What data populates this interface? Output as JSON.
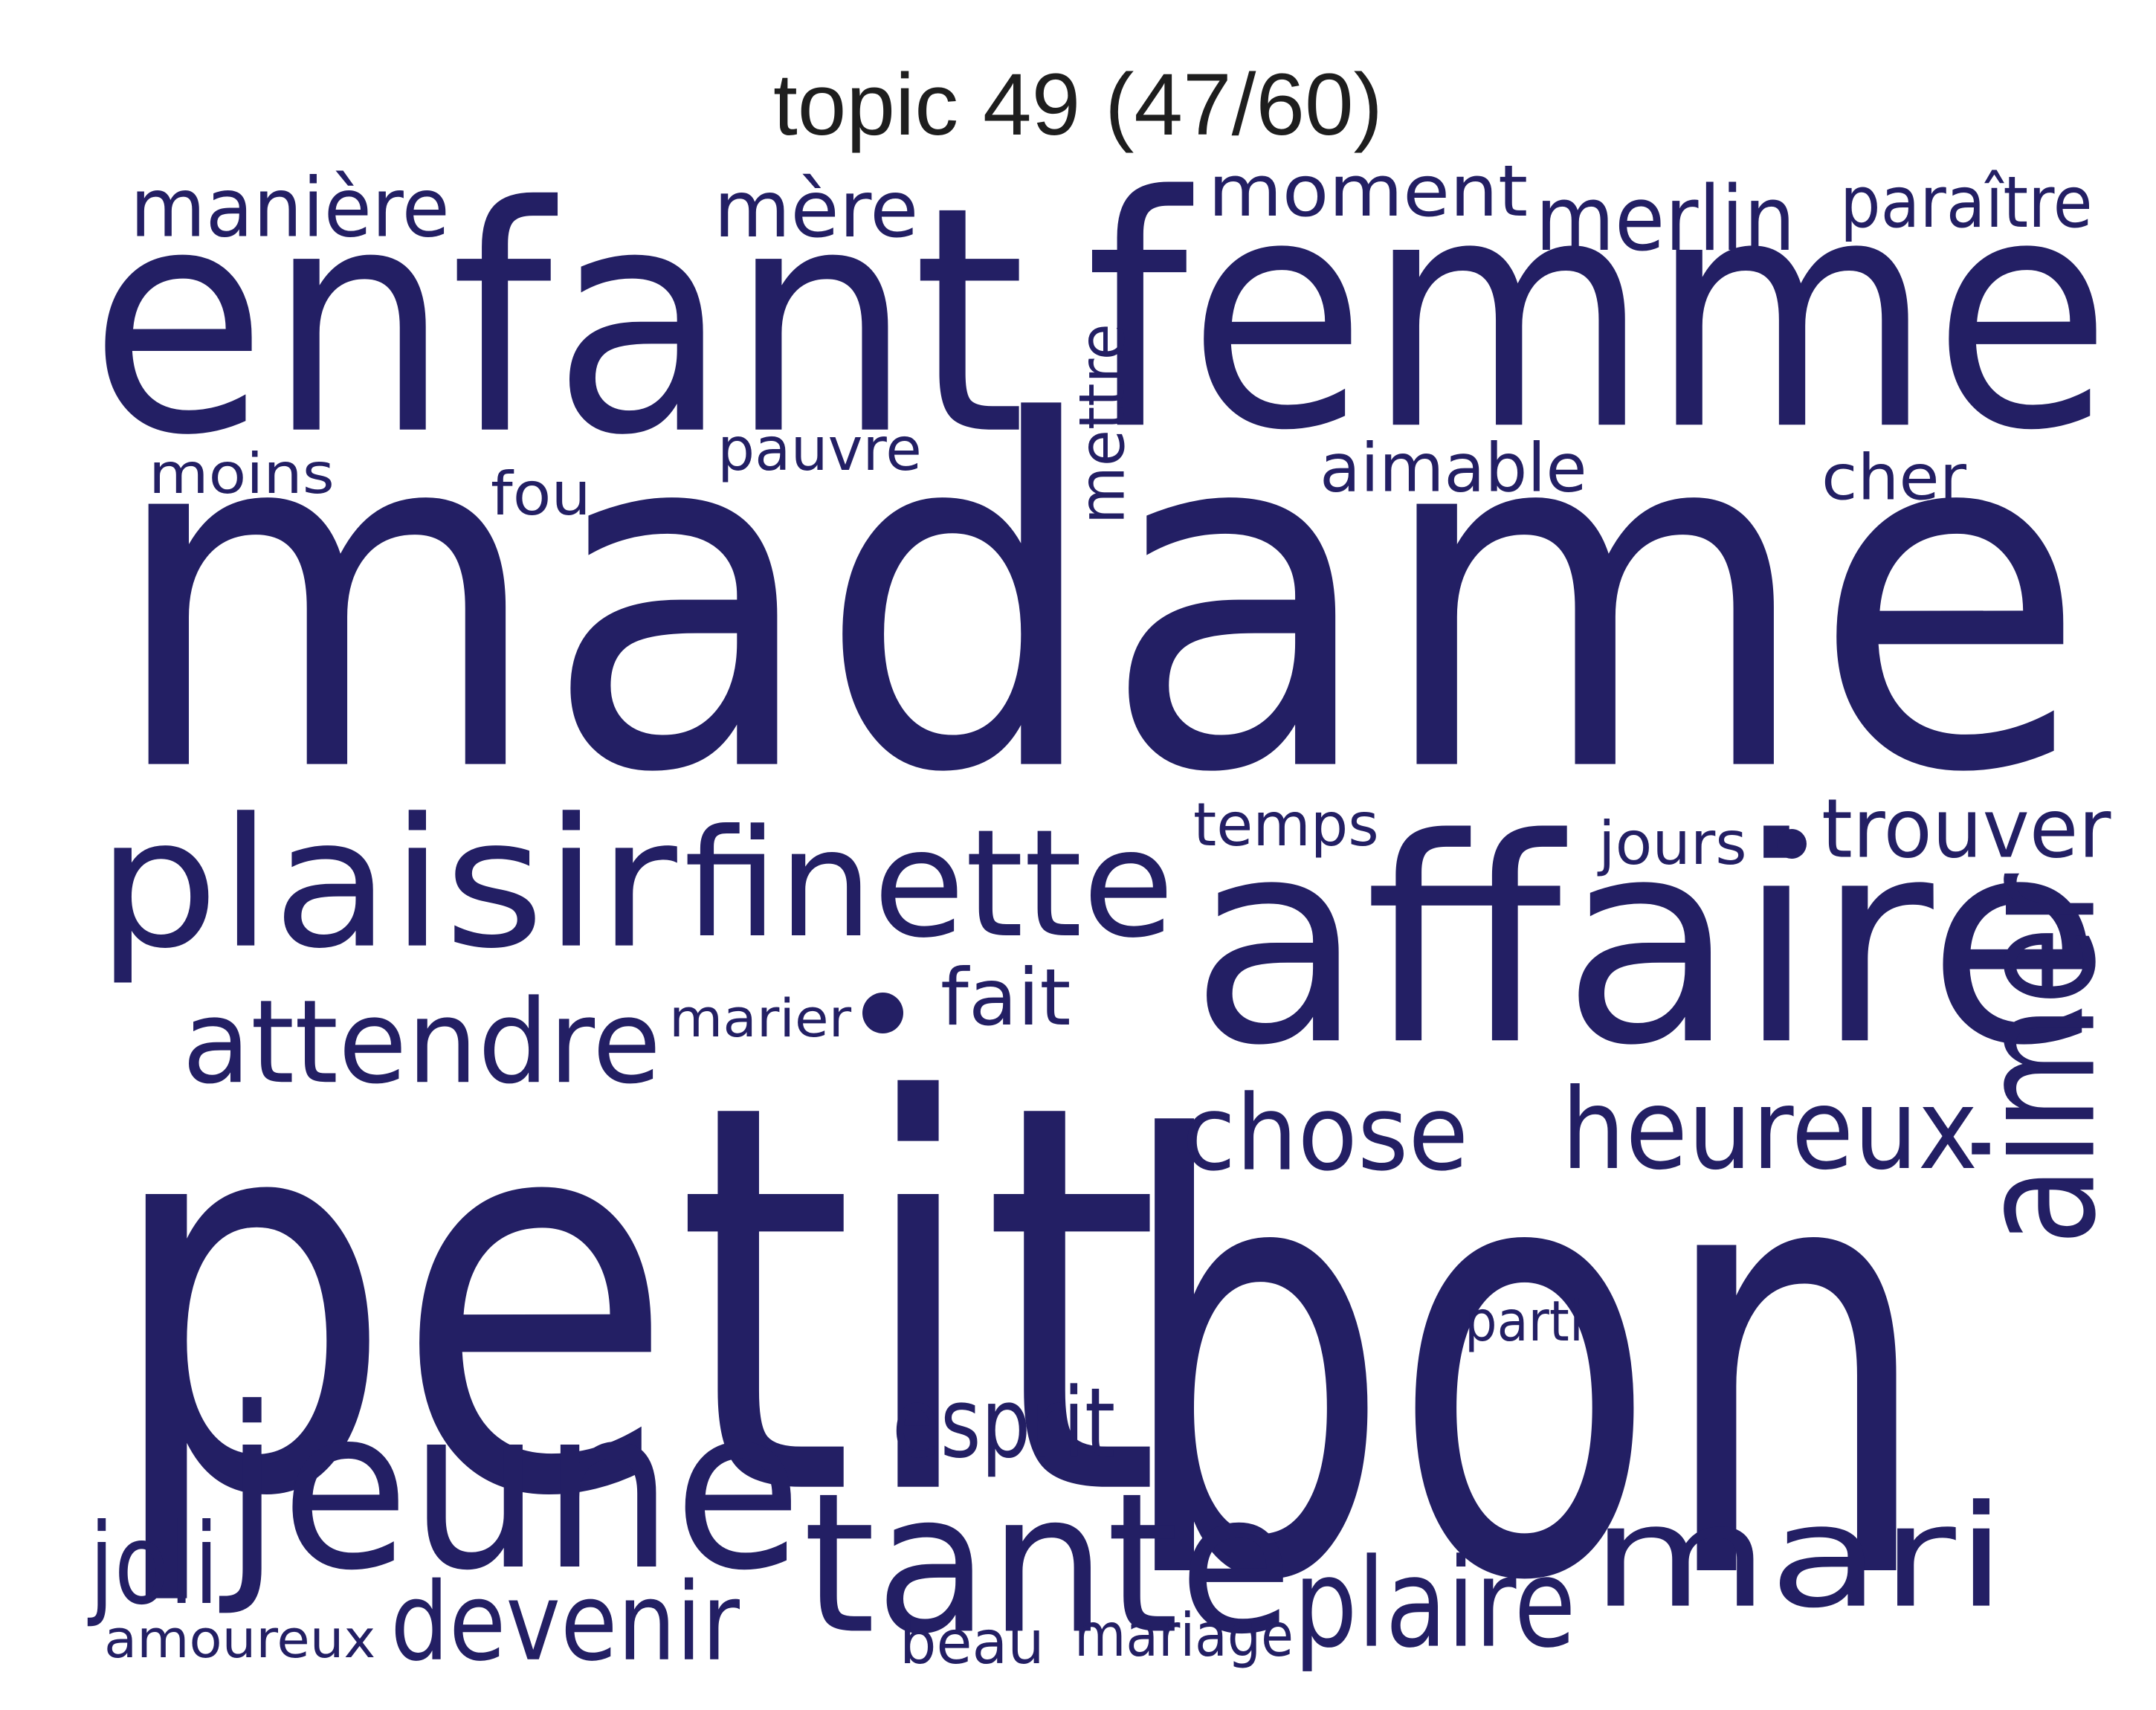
{
  "title": "topic 49 (47/60)",
  "color": "#231f64",
  "words": [
    {
      "text": "madame",
      "weight": 1.0
    },
    {
      "text": "petit",
      "weight": 0.93
    },
    {
      "text": "bon",
      "weight": 0.82
    },
    {
      "text": "femme",
      "weight": 0.62
    },
    {
      "text": "enfant",
      "weight": 0.6
    },
    {
      "text": "affaire",
      "weight": 0.56
    },
    {
      "text": "jeune",
      "weight": 0.4
    },
    {
      "text": "tante",
      "weight": 0.37
    },
    {
      "text": "mari",
      "weight": 0.36
    },
    {
      "text": "plaisir",
      "weight": 0.32
    },
    {
      "text": "finette",
      "weight": 0.27
    },
    {
      "text": "aimer",
      "weight": 0.26
    },
    {
      "text": "plaire",
      "weight": 0.22
    },
    {
      "text": "heureux",
      "weight": 0.2
    },
    {
      "text": "chose",
      "weight": 0.19
    },
    {
      "text": "attendre",
      "weight": 0.19
    },
    {
      "text": "devenir",
      "weight": 0.17
    },
    {
      "text": "joli",
      "weight": 0.16
    },
    {
      "text": "esprit",
      "weight": 0.16
    },
    {
      "text": "merlin",
      "weight": 0.15
    },
    {
      "text": "manière",
      "weight": 0.15
    },
    {
      "text": "moment",
      "weight": 0.15
    },
    {
      "text": "mère",
      "weight": 0.15
    },
    {
      "text": "trouver",
      "weight": 0.15
    },
    {
      "text": "fait",
      "weight": 0.14
    },
    {
      "text": "paraître",
      "weight": 0.12
    },
    {
      "text": "aimable",
      "weight": 0.12
    },
    {
      "text": "cher",
      "weight": 0.12
    },
    {
      "text": "mettre",
      "weight": 0.11
    },
    {
      "text": "moins",
      "weight": 0.1
    },
    {
      "text": "pauvre",
      "weight": 0.1
    },
    {
      "text": "fou",
      "weight": 0.1
    },
    {
      "text": "temps",
      "weight": 0.1
    },
    {
      "text": "beau",
      "weight": 0.1
    },
    {
      "text": "mariage",
      "weight": 0.09
    },
    {
      "text": "amoureux",
      "weight": 0.09
    },
    {
      "text": "parti",
      "weight": 0.09
    },
    {
      "text": "jours",
      "weight": 0.09
    },
    {
      "text": "marier",
      "weight": 0.09
    }
  ]
}
